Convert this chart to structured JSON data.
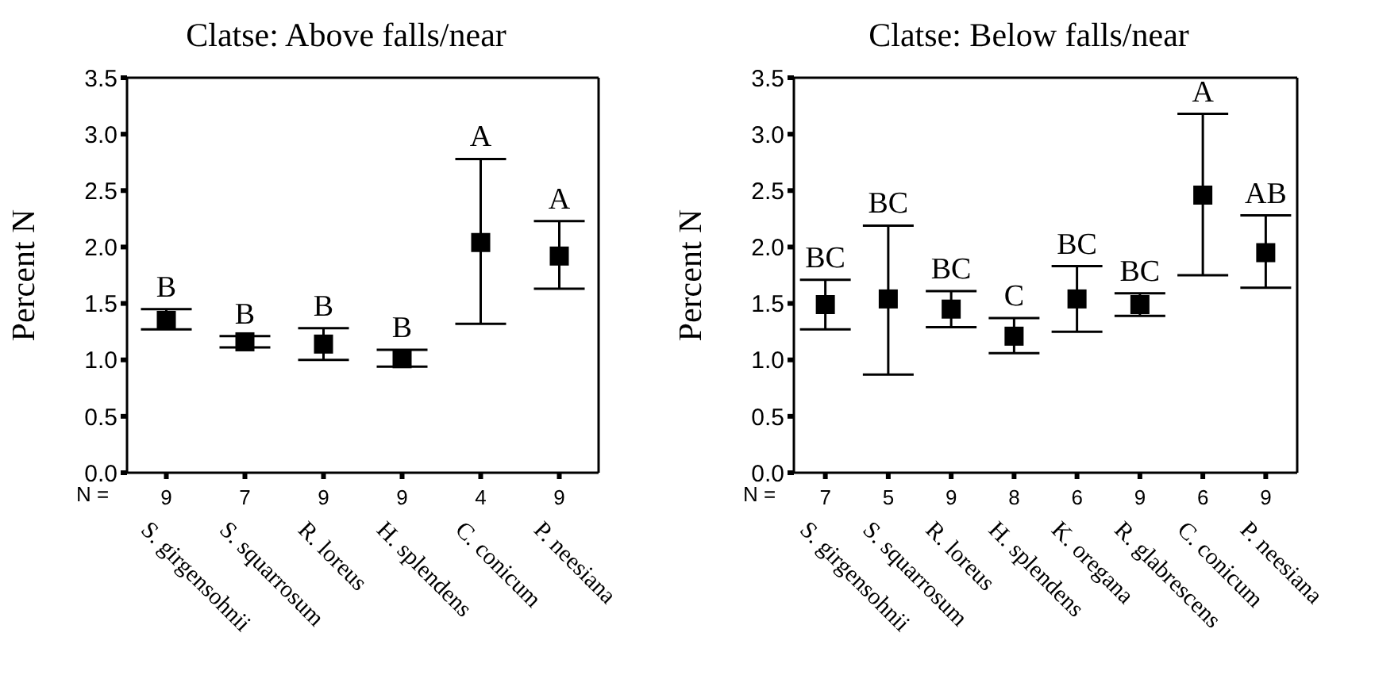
{
  "chart_data": [
    {
      "type": "scatter",
      "title": "Clatse: Above falls/near",
      "ylabel": "Percent N",
      "marker": "square",
      "color": "#000000",
      "categories": [
        "S. girgensohnii",
        "S. squarrosum",
        "R. loreus",
        "H. splendens",
        "C. conicum",
        "P. neesiana"
      ],
      "values": [
        1.35,
        1.16,
        1.14,
        1.01,
        2.04,
        1.92
      ],
      "errors": [
        [
          1.27,
          1.45
        ],
        [
          1.11,
          1.21
        ],
        [
          1.0,
          1.28
        ],
        [
          0.94,
          1.09
        ],
        [
          1.32,
          2.78
        ],
        [
          1.63,
          2.23
        ]
      ],
      "ylim": [
        0,
        3.5
      ],
      "yticks": [
        {
          "value": 0,
          "label": "0.0"
        },
        {
          "value": 0.5,
          "label": "0.5"
        },
        {
          "value": 1,
          "label": "1.0"
        },
        {
          "value": 1.5,
          "label": "1.5"
        },
        {
          "value": 2,
          "label": "2.0"
        },
        {
          "value": 2.5,
          "label": "2.5"
        },
        {
          "value": 3,
          "label": "3.0"
        },
        {
          "value": 3.5,
          "label": "3.5"
        }
      ],
      "grid": false,
      "legend": false,
      "annotations": [
        "B",
        "B",
        "B",
        "B",
        "A",
        "A",
        "N =",
        "9",
        "7",
        "9",
        "9",
        "4",
        "9"
      ]
    },
    {
      "type": "scatter",
      "title": "Clatse: Below falls/near",
      "ylabel": "Percent N",
      "marker": "square",
      "color": "#000000",
      "categories": [
        "S. girgensohnii",
        "S. squarrosum",
        "R. loreus",
        "H. splendens",
        "K. oregana",
        "R. glabrescens",
        "C. conicum",
        "P. neesiana"
      ],
      "values": [
        1.49,
        1.54,
        1.45,
        1.21,
        1.54,
        1.49,
        2.46,
        1.95
      ],
      "errors": [
        [
          1.27,
          1.71
        ],
        [
          0.87,
          2.19
        ],
        [
          1.29,
          1.61
        ],
        [
          1.06,
          1.37
        ],
        [
          1.25,
          1.83
        ],
        [
          1.39,
          1.59
        ],
        [
          1.75,
          3.18
        ],
        [
          1.64,
          2.28
        ]
      ],
      "ylim": [
        0,
        3.5
      ],
      "yticks": [
        {
          "value": 0,
          "label": "0.0"
        },
        {
          "value": 0.5,
          "label": "0.5"
        },
        {
          "value": 1,
          "label": "1.0"
        },
        {
          "value": 1.5,
          "label": "1.5"
        },
        {
          "value": 2,
          "label": "2.0"
        },
        {
          "value": 2.5,
          "label": "2.5"
        },
        {
          "value": 3,
          "label": "3.0"
        },
        {
          "value": 3.5,
          "label": "3.5"
        }
      ],
      "grid": false,
      "legend": false,
      "annotations": [
        "BC",
        "BC",
        "BC",
        "C",
        "BC",
        "BC",
        "A",
        "AB",
        "N =",
        "7",
        "5",
        "9",
        "8",
        "6",
        "9",
        "6",
        "9"
      ]
    }
  ]
}
